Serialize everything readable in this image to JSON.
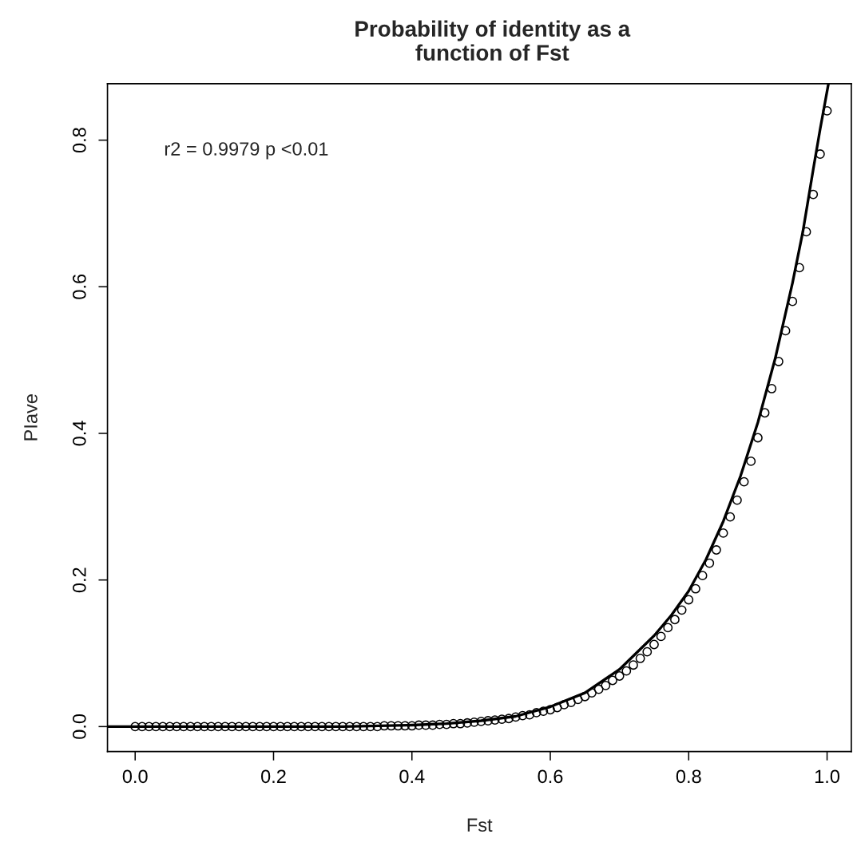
{
  "chart_data": {
    "type": "scatter",
    "title": "Probability of identity as a\nfunction of Fst",
    "xlabel": "Fst",
    "ylabel": "PIave",
    "annotations": [
      "r2 = 0.9979 p <0.01"
    ],
    "xlim": [
      -0.04,
      1.035
    ],
    "ylim": [
      -0.034,
      0.877
    ],
    "xticks": [
      {
        "value": 0,
        "label": "0.0"
      },
      {
        "value": 0.2,
        "label": "0.2"
      },
      {
        "value": 0.4,
        "label": "0.4"
      },
      {
        "value": 0.6,
        "label": "0.6"
      },
      {
        "value": 0.8,
        "label": "0.8"
      },
      {
        "value": 1,
        "label": "1.0"
      }
    ],
    "yticks": [
      {
        "value": 0,
        "label": "0.0"
      },
      {
        "value": 0.2,
        "label": "0.2"
      },
      {
        "value": 0.4,
        "label": "0.4"
      },
      {
        "value": 0.6,
        "label": "0.6"
      },
      {
        "value": 0.8,
        "label": "0.8"
      }
    ],
    "grid": false,
    "series": [
      {
        "marker": "circle",
        "color": "#000000",
        "x": [
          0,
          0.01,
          0.02,
          0.03,
          0.04,
          0.05,
          0.06,
          0.07,
          0.08,
          0.09,
          0.1,
          0.11,
          0.12,
          0.13,
          0.14,
          0.15,
          0.16,
          0.17,
          0.18,
          0.19,
          0.2,
          0.21,
          0.22,
          0.23,
          0.24,
          0.25,
          0.26,
          0.27,
          0.28,
          0.29,
          0.3,
          0.31,
          0.32,
          0.33,
          0.34,
          0.35,
          0.36,
          0.37,
          0.38,
          0.39,
          0.4,
          0.41,
          0.42,
          0.43,
          0.44,
          0.45,
          0.46,
          0.47,
          0.48,
          0.49,
          0.5,
          0.51,
          0.52,
          0.53,
          0.54,
          0.55,
          0.56,
          0.57,
          0.58,
          0.59,
          0.6,
          0.61,
          0.62,
          0.63,
          0.64,
          0.65,
          0.66,
          0.67,
          0.68,
          0.69,
          0.7,
          0.71,
          0.72,
          0.73,
          0.74,
          0.75,
          0.76,
          0.77,
          0.78,
          0.79,
          0.8,
          0.81,
          0.82,
          0.83,
          0.84,
          0.85,
          0.86,
          0.87,
          0.88,
          0.89,
          0.9,
          0.91,
          0.92,
          0.93,
          0.94,
          0.95,
          0.96,
          0.97,
          0.98,
          0.99,
          1.0
        ],
        "values": [
          0,
          0,
          0,
          0,
          0,
          0,
          0,
          0,
          0,
          0,
          0,
          0,
          0,
          0,
          0,
          0,
          0,
          0,
          0,
          0,
          0,
          0,
          0,
          0,
          0,
          0,
          0,
          0,
          0,
          0,
          0,
          0,
          0,
          0,
          0,
          0,
          0.001,
          0.001,
          0.001,
          0.001,
          0.001,
          0.002,
          0.002,
          0.002,
          0.003,
          0.003,
          0.004,
          0.004,
          0.005,
          0.006,
          0.007,
          0.008,
          0.009,
          0.01,
          0.011,
          0.013,
          0.015,
          0.016,
          0.019,
          0.021,
          0.023,
          0.026,
          0.03,
          0.033,
          0.037,
          0.041,
          0.046,
          0.051,
          0.056,
          0.063,
          0.069,
          0.076,
          0.084,
          0.093,
          0.102,
          0.112,
          0.123,
          0.135,
          0.146,
          0.159,
          0.173,
          0.188,
          0.206,
          0.223,
          0.241,
          0.264,
          0.286,
          0.309,
          0.334,
          0.362,
          0.394,
          0.428,
          0.461,
          0.498,
          0.54,
          0.58,
          0.626,
          0.675,
          0.726,
          0.781,
          0.84
        ]
      },
      {
        "type": "line",
        "line_style": "solid",
        "color": "#000000",
        "x": [
          -0.04,
          0,
          0.1,
          0.2,
          0.3,
          0.4,
          0.45,
          0.5,
          0.55,
          0.6,
          0.65,
          0.7,
          0.75,
          0.775,
          0.8,
          0.825,
          0.85,
          0.875,
          0.9,
          0.925,
          0.95,
          0.965,
          0.98,
          0.99,
          1.002
        ],
        "values": [
          0,
          0,
          0,
          0,
          0,
          0.002,
          0.004,
          0.008,
          0.014,
          0.027,
          0.046,
          0.078,
          0.124,
          0.152,
          0.185,
          0.228,
          0.28,
          0.342,
          0.415,
          0.502,
          0.605,
          0.675,
          0.76,
          0.815,
          0.877
        ]
      }
    ]
  }
}
